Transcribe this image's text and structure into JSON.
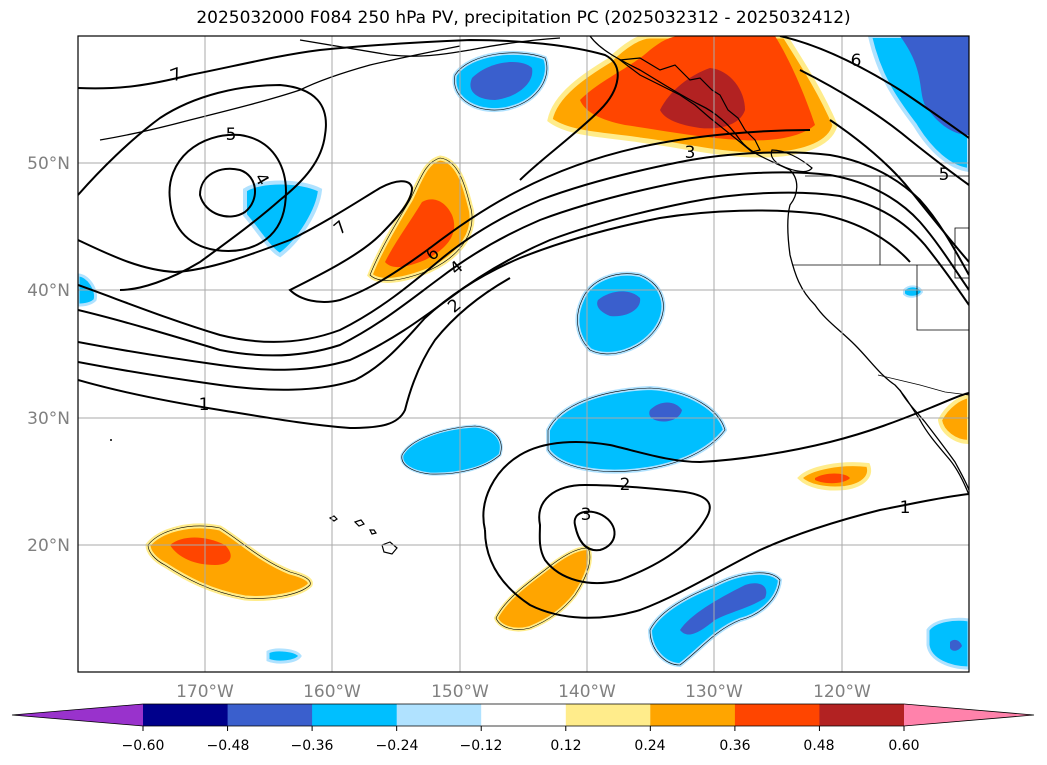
{
  "title": "2025032000 F084 250 hPa PV, precipitation PC (2025032312 - 2025032412)",
  "lat_labels": [
    "50°N",
    "40°N",
    "30°N",
    "20°N"
  ],
  "lon_labels": [
    "170°W",
    "160°W",
    "150°W",
    "140°W",
    "130°W",
    "120°W"
  ],
  "pv_contour_labels": [
    "7",
    "5",
    "4",
    "7",
    "6",
    "4",
    "2",
    "3",
    "6",
    "5",
    "1",
    "3",
    "2",
    "1"
  ],
  "colorbar": {
    "tick_labels": [
      "−0.60",
      "−0.48",
      "−0.36",
      "−0.24",
      "−0.12",
      "0.12",
      "0.24",
      "0.36",
      "0.48",
      "0.60"
    ],
    "colors": [
      "#9932cc",
      "#00008b",
      "#3a5fcd",
      "#00bfff",
      "#b0e2ff",
      "#ffffff",
      "#ffec8b",
      "#ffa500",
      "#ff4500",
      "#b22222",
      "#ff82ab"
    ]
  }
}
